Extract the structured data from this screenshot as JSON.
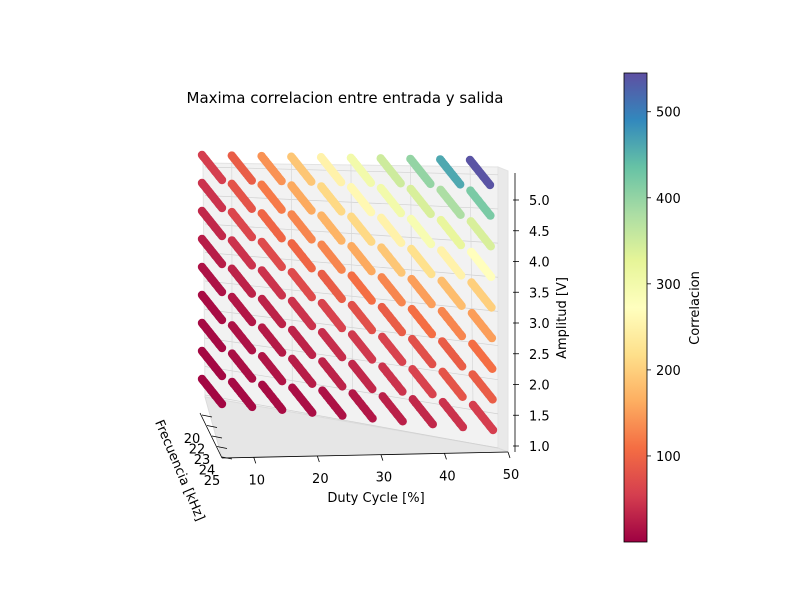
{
  "chart_data": {
    "type": "scatter",
    "title": "Maxima correlacion entre entrada y salida",
    "xlabel": "Duty Cycle [%]",
    "ylabel": "Frecuencia [kHz]",
    "zlabel": "Amplitud [V]",
    "x_ticks": [
      "10",
      "20",
      "30",
      "40",
      "50"
    ],
    "y_ticks": [
      "20",
      "22",
      "23",
      "24",
      "25"
    ],
    "z_ticks": [
      "1.0",
      "1.5",
      "2.0",
      "2.5",
      "3.0",
      "3.5",
      "4.0",
      "4.5",
      "5.0"
    ],
    "colorbar": {
      "label": "Correlacion",
      "ticks": [
        "100",
        "200",
        "300",
        "400",
        "500"
      ],
      "tick_values": [
        100,
        200,
        300,
        400,
        500
      ],
      "range": [
        0,
        545
      ],
      "colormap": "Spectral"
    },
    "duty_cycle": [
      5,
      10,
      15,
      20,
      25,
      30,
      35,
      40,
      45,
      50
    ],
    "amplitude": [
      1.0,
      1.5,
      2.0,
      2.5,
      3.0,
      3.5,
      4.0,
      4.5,
      5.0
    ],
    "frequency_range": [
      20,
      25
    ],
    "correlation": [
      [
        5,
        8,
        10,
        12,
        15,
        20,
        28,
        35,
        45,
        55
      ],
      [
        6,
        12,
        18,
        25,
        30,
        35,
        45,
        60,
        80,
        90
      ],
      [
        8,
        15,
        22,
        30,
        40,
        50,
        60,
        75,
        90,
        110
      ],
      [
        10,
        20,
        30,
        45,
        60,
        75,
        90,
        110,
        130,
        150
      ],
      [
        15,
        30,
        45,
        70,
        90,
        110,
        130,
        150,
        180,
        200
      ],
      [
        25,
        45,
        70,
        100,
        130,
        160,
        190,
        220,
        250,
        270
      ],
      [
        35,
        65,
        100,
        130,
        170,
        210,
        250,
        290,
        320,
        340
      ],
      [
        45,
        80,
        120,
        160,
        210,
        260,
        300,
        340,
        380,
        420
      ],
      [
        55,
        90,
        140,
        190,
        250,
        300,
        350,
        400,
        460,
        540
      ]
    ]
  }
}
